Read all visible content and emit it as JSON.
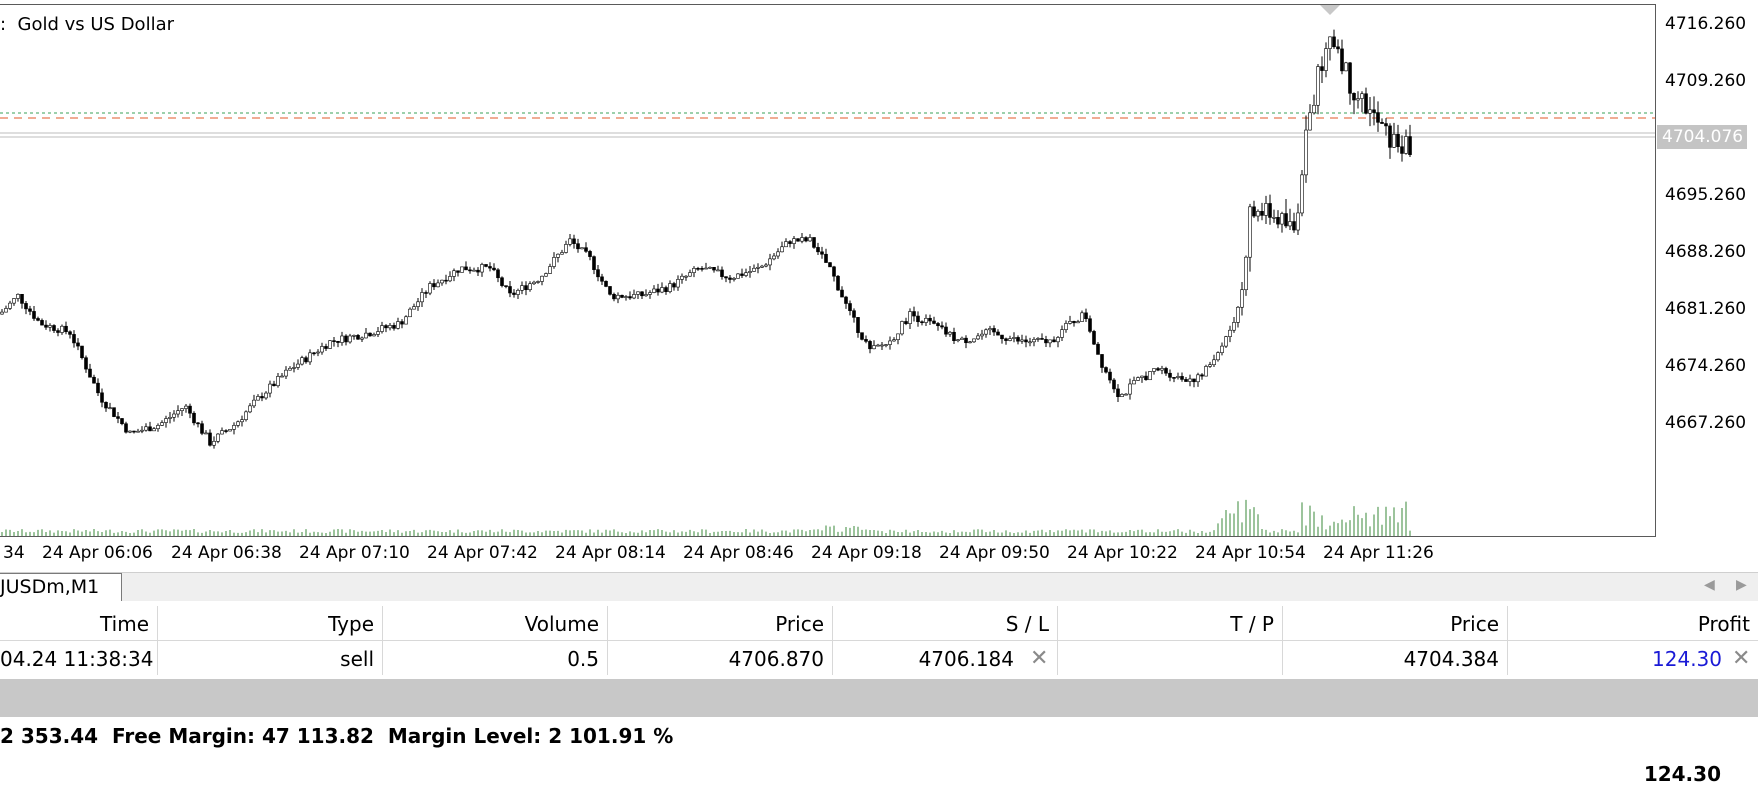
{
  "chart": {
    "title": ":  Gold vs US Dollar",
    "price_tag": "4704.076",
    "y_ticks": [
      "4716.260",
      "4709.260",
      "4702.260",
      "4695.260",
      "4688.260",
      "4681.260",
      "4674.260",
      "4667.260"
    ],
    "x_ticks": [
      "34",
      "24 Apr 06:06",
      "24 Apr 06:38",
      "24 Apr 07:10",
      "24 Apr 07:42",
      "24 Apr 08:14",
      "24 Apr 08:46",
      "24 Apr 09:18",
      "24 Apr 09:50",
      "24 Apr 10:22",
      "24 Apr 10:54",
      "24 Apr 11:26"
    ],
    "colors": {
      "candle": "#000000",
      "volume": "#3a8a3a",
      "sl_line": "#e05a2a",
      "tp_line": "#3aa05a",
      "bid_line": "#bdbdbd"
    }
  },
  "tabs": {
    "active": "JUSDm,M1",
    "left_arrow": "◀",
    "right_arrow": "▶"
  },
  "trade_table": {
    "headers": [
      "Time",
      "Type",
      "Volume",
      "Price",
      "S / L",
      "T / P",
      "Price",
      "Profit"
    ],
    "row": {
      "time": "04.24 11:38:34",
      "type": "sell",
      "volume": "0.5",
      "open_price": "4706.870",
      "sl": "4706.184",
      "tp": "",
      "current_price": "4704.384",
      "profit": "124.30",
      "close_icon": "✕"
    }
  },
  "status": {
    "text": "2 353.44  Free Margin: 47 113.82  Margin Level: 2 101.91 %",
    "total_profit": "124.30"
  }
}
